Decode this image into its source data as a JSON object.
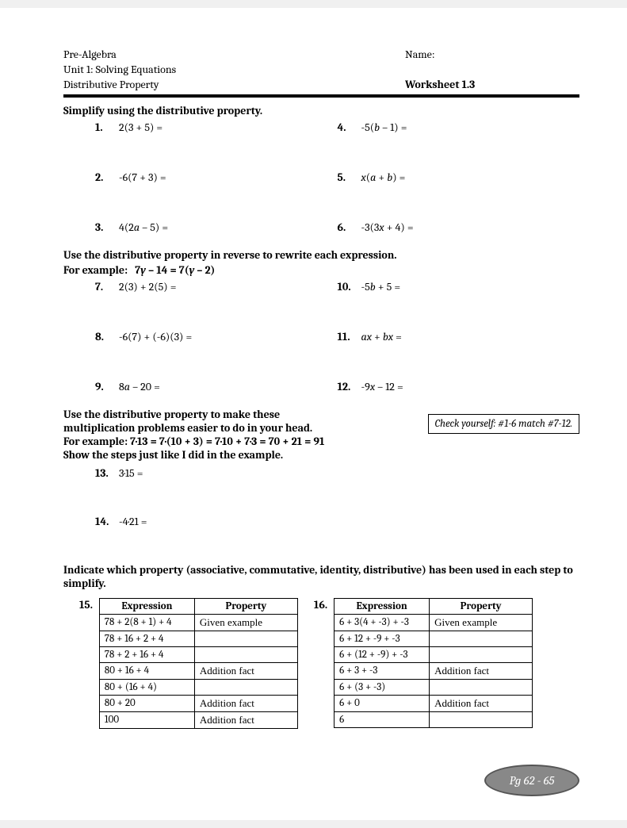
{
  "header": {
    "course": "Pre-Algebra",
    "unit": "Unit 1: Solving Equations",
    "topic": "Distributive Property",
    "name_label": "Name:",
    "worksheet": "Worksheet 1.3"
  },
  "section1": {
    "title": "Simplify using the distributive property.",
    "problems": [
      {
        "n": "1.",
        "text": "2(3 + 5) ="
      },
      {
        "n": "4.",
        "text": "-5(b – 1) ="
      },
      {
        "n": "2.",
        "text": "-6(7 + 3) ="
      },
      {
        "n": "5.",
        "text": "x(a + b) ="
      },
      {
        "n": "3.",
        "text": "4(2a – 5) ="
      },
      {
        "n": "6.",
        "text": "-3(3x + 4) ="
      }
    ]
  },
  "section2": {
    "title": "Use the distributive property in reverse to rewrite each expression.",
    "example": "For example:   7y – 14 = 7(y – 2)",
    "problems": [
      {
        "n": "7.",
        "text": "2(3) + 2(5) ="
      },
      {
        "n": "10.",
        "text": "-5b + 5 ="
      },
      {
        "n": "8.",
        "text": "-6(7) + (-6)(3) ="
      },
      {
        "n": "11.",
        "text": "ax + bx ="
      },
      {
        "n": "9.",
        "text": "8a – 20 ="
      },
      {
        "n": "12.",
        "text": "-9x – 12 ="
      }
    ]
  },
  "check": "Check yourself: #1-6 match #7-12.",
  "section3": {
    "line1": "Use the distributive property to make these",
    "line2": "multiplication problems easier to do in your head.",
    "example": "For example:   7·13 = 7·(10 + 3) = 7·10 + 7·3 = 70 + 21 = 91",
    "line3": "Show the steps just like I did in the example.",
    "problems": [
      {
        "n": "13.",
        "text": "3·15 ="
      },
      {
        "n": "14.",
        "text": "-4·21 ="
      }
    ]
  },
  "section4": {
    "title": "Indicate which property (associative, commutative, identity, distributive) has been used in each step to simplify."
  },
  "table15": {
    "num": "15.",
    "headers": [
      "Expression",
      "Property"
    ],
    "rows": [
      [
        "78 + 2(8 + 1) + 4",
        "Given example"
      ],
      [
        "78 + 16 + 2 + 4",
        ""
      ],
      [
        "78 + 2 + 16 + 4",
        ""
      ],
      [
        "80 + 16 + 4",
        "Addition fact"
      ],
      [
        "80 + (16 + 4)",
        ""
      ],
      [
        "80 + 20",
        "Addition fact"
      ],
      [
        "100",
        "Addition fact"
      ]
    ]
  },
  "table16": {
    "num": "16.",
    "headers": [
      "Expression",
      "Property"
    ],
    "rows": [
      [
        "6 + 3(4 + -3) + -3",
        "Given example"
      ],
      [
        "6 + 12 + -9 + -3",
        ""
      ],
      [
        "6 + (12 + -9) + -3",
        ""
      ],
      [
        "6 + 3 + -3",
        "Addition fact"
      ],
      [
        "6 + (3 + -3)",
        ""
      ],
      [
        "6 + 0",
        "Addition fact"
      ],
      [
        "6",
        ""
      ]
    ]
  },
  "footer": "Pg 62 - 65"
}
